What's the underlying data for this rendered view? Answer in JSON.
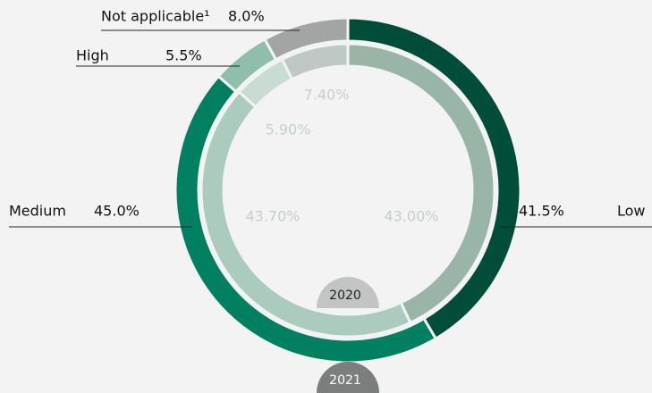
{
  "chart_data": {
    "type": "donut",
    "categories": [
      "Low",
      "Medium",
      "High",
      "Not applicable¹"
    ],
    "series": [
      {
        "name": "2021",
        "values": [
          41.5,
          45.0,
          5.5,
          8.0
        ],
        "value_labels": [
          "41.5%",
          "45.0%",
          "5.5%",
          "8.0%"
        ],
        "colors": [
          "#004d3a",
          "#008060",
          "#8fbfab",
          "#a3a5a4"
        ]
      },
      {
        "name": "2020",
        "values": [
          43.0,
          43.7,
          5.9,
          7.4
        ],
        "value_labels": [
          "43.00%",
          "43.70%",
          "5.90%",
          "7.40%"
        ],
        "colors": [
          "#98b5a8",
          "#abcbbe",
          "#c9dcd3",
          "#bec9c5"
        ]
      }
    ]
  }
}
